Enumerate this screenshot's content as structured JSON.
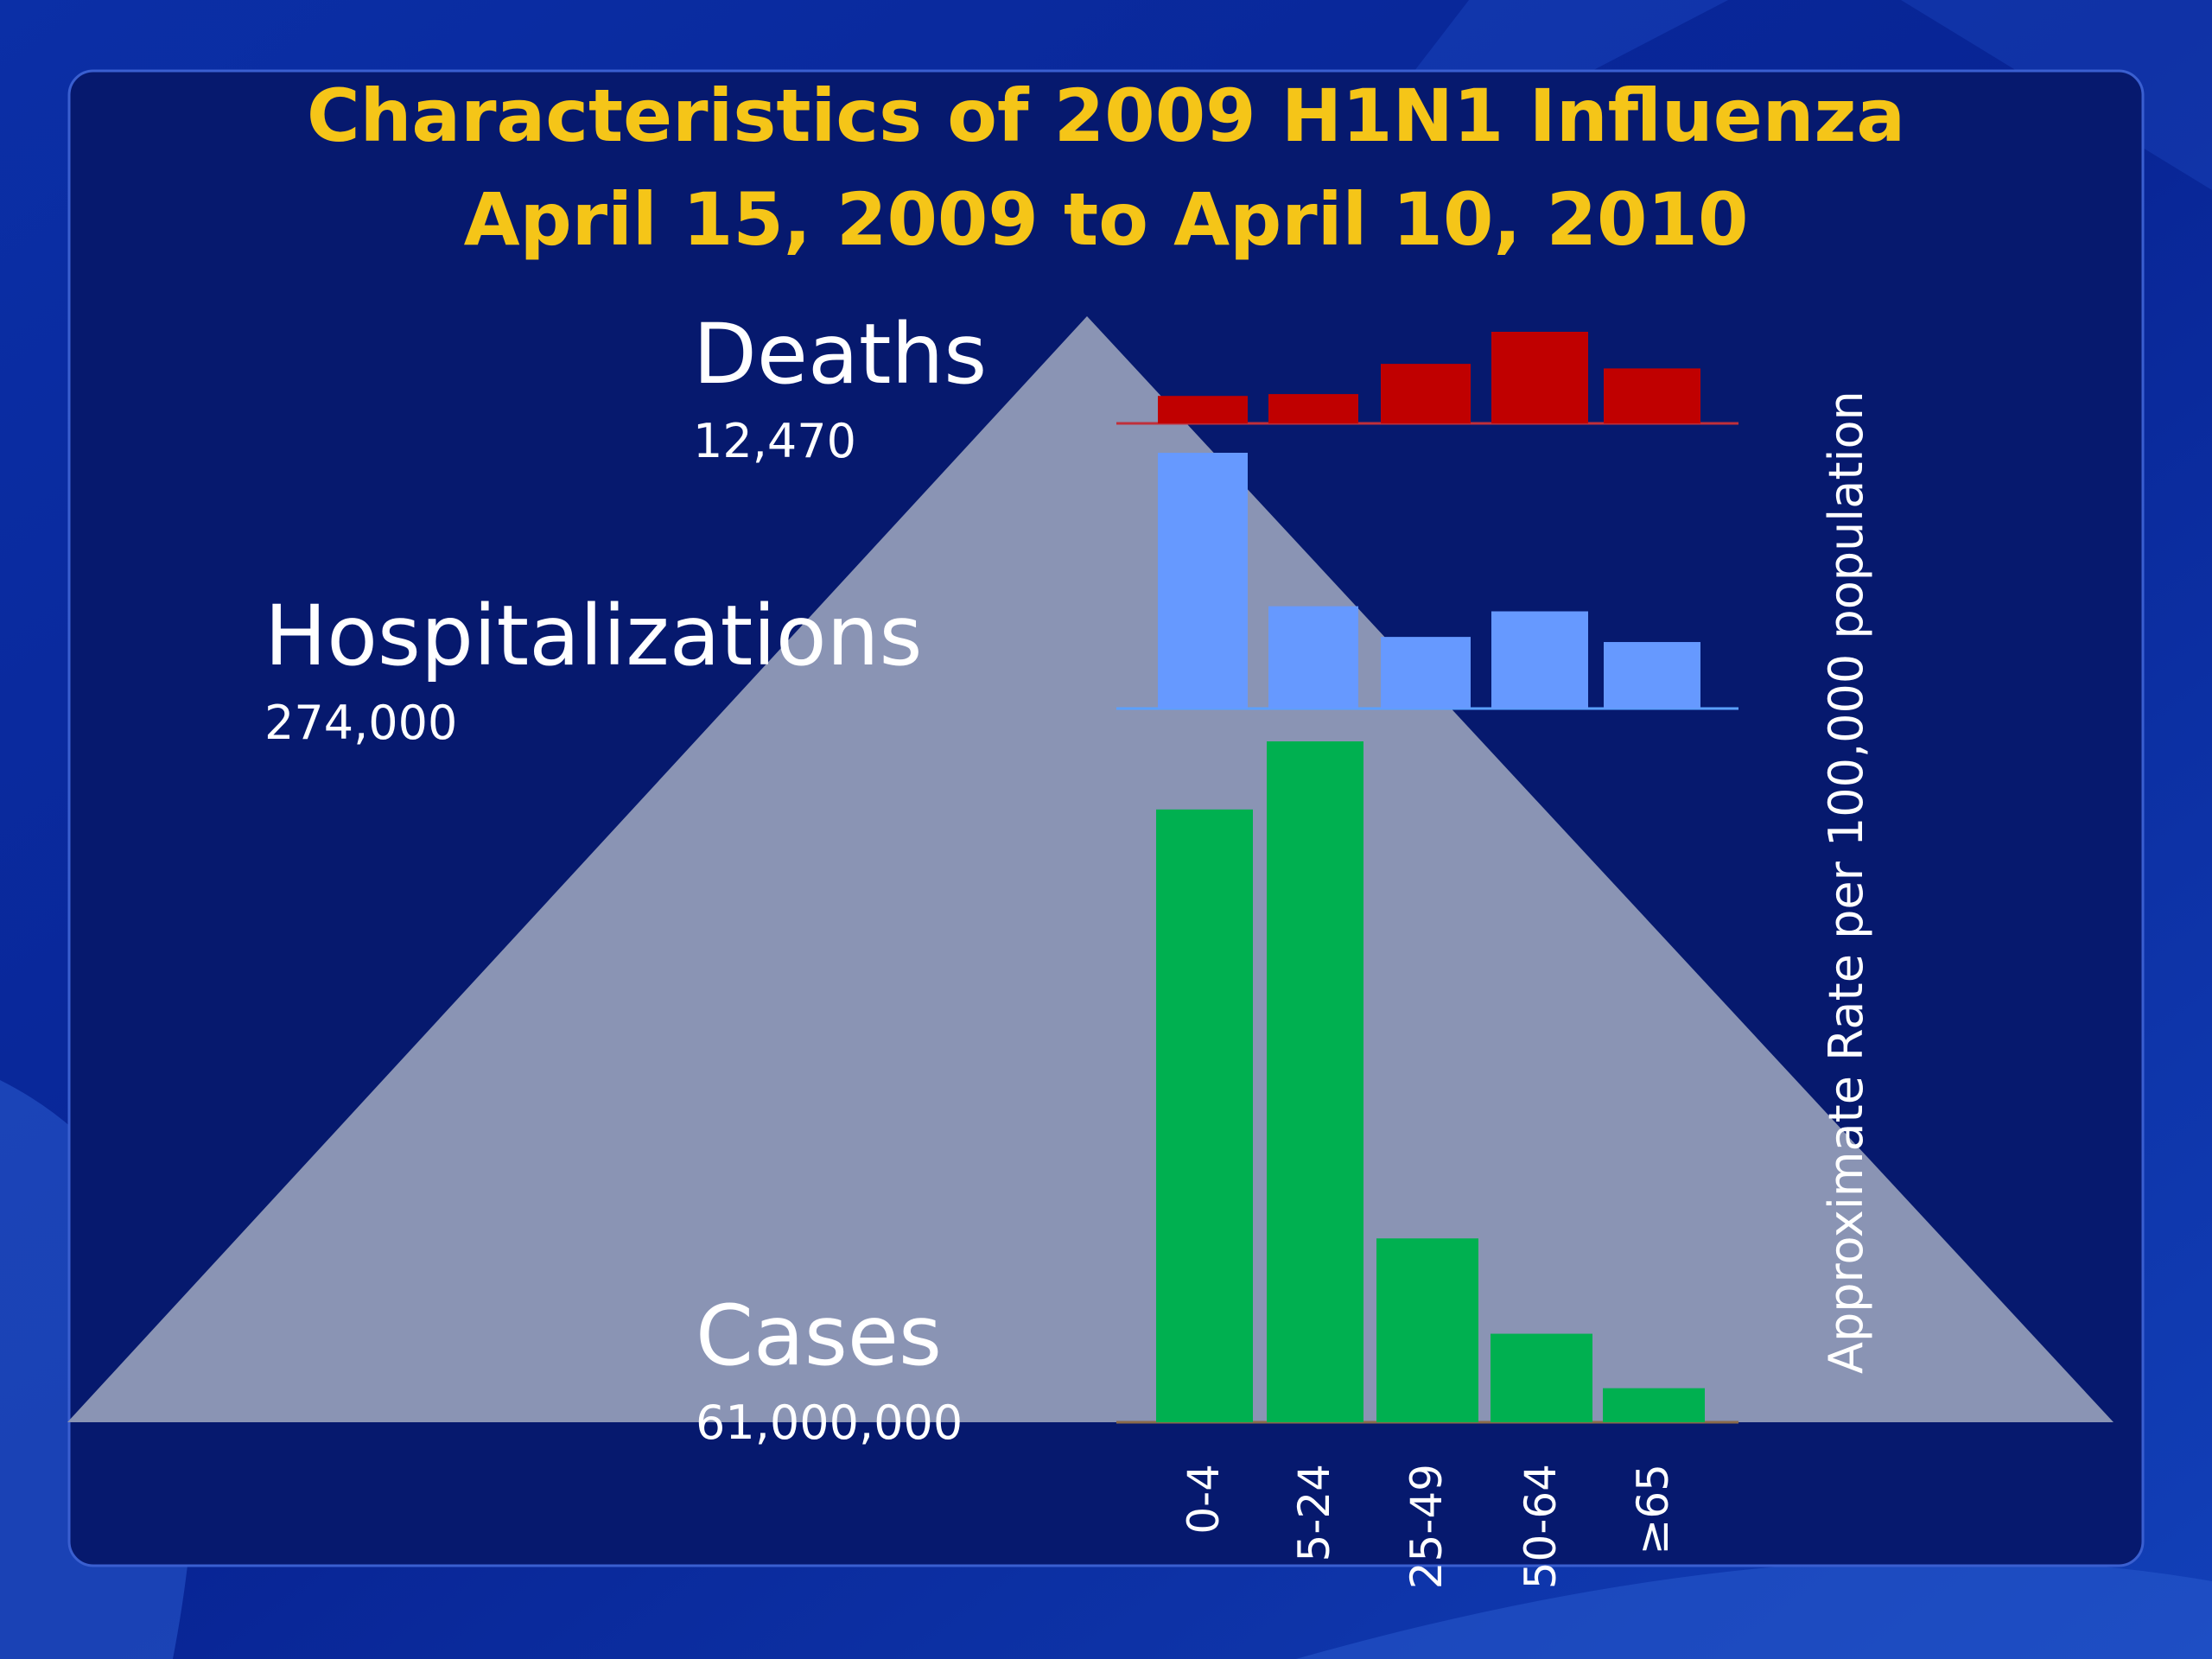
{
  "slide": {
    "title_line_1": "Characteristics of 2009 H1N1 Influenza",
    "title_line_2": "April 15, 2009 to April 10, 2010",
    "deaths_label": "Deaths",
    "deaths_count": "12,470",
    "hospitalizations_label": "Hospitalizations",
    "hospitalizations_count": "274,000",
    "cases_label": "Cases",
    "cases_count": "61,000,000",
    "ylabel": "Approximate Rate per 100,000 population"
  },
  "colors": {
    "title": "#f5c518",
    "deaths": "#c00000",
    "hospitalizations": "#6699ff",
    "cases": "#00b050",
    "pyramid": "#8a94b4",
    "frame": "#1a3aa8"
  },
  "chart_data": {
    "type": "bar",
    "ylabel": "Approximate Rate per 100,000 population",
    "categories": [
      "0-4",
      "5-24",
      "25-49",
      "50-64",
      "≥65"
    ],
    "series": [
      {
        "name": "Deaths",
        "values": [
          0.3,
          0.32,
          0.65,
          1.0,
          0.6
        ]
      },
      {
        "name": "Hospitalizations",
        "values": [
          1.0,
          0.4,
          0.28,
          0.38,
          0.26
        ]
      },
      {
        "name": "Cases",
        "values": [
          0.9,
          1.0,
          0.27,
          0.13,
          0.05
        ]
      }
    ]
  }
}
